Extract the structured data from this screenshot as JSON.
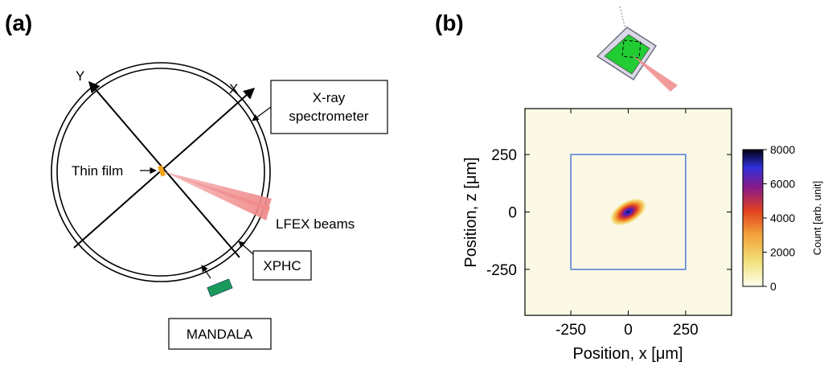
{
  "panel_a": {
    "label": "(a)",
    "axis_y": "Y",
    "axis_x": "X",
    "thin_film": "Thin film",
    "lfex": "LFEX beams",
    "spectrometer_line1": "X-ray",
    "spectrometer_line2": "spectrometer",
    "xphc": "XPHC",
    "mandala": "MANDALA",
    "colors": {
      "film": "#f2a31a",
      "beam": "#f08a8a",
      "mandala": "#1a9a5a"
    }
  },
  "panel_b": {
    "label": "(b)",
    "colorbar_label": "Count [arb. unit]",
    "colors": {
      "frame": "#5b7fd6",
      "plot_bg": "#fbf9e6",
      "inset_fill": "#22cc33",
      "inset_border": "#8a8a8a"
    }
  },
  "chart_data": {
    "type": "heatmap",
    "xlabel": "Position, x [μm]",
    "ylabel": "Position, z [μm]",
    "xlim": [
      -450,
      450
    ],
    "ylim": [
      -450,
      450
    ],
    "xticks": [
      -250,
      0,
      250
    ],
    "yticks": [
      -250,
      0,
      250
    ],
    "tick_labels_x": [
      "-250",
      "0",
      "250"
    ],
    "tick_labels_y": [
      "-250",
      "0",
      "250"
    ],
    "frame_box": {
      "x": [
        -250,
        250
      ],
      "z": [
        -250,
        250
      ]
    },
    "hotspot": {
      "x": 0,
      "z": 0,
      "peak_count": 8000
    },
    "colorbar": {
      "range": [
        0,
        8000
      ],
      "ticks": [
        0,
        2000,
        4000,
        6000,
        8000
      ],
      "tick_labels": [
        "0",
        "2000",
        "4000",
        "6000",
        "8000"
      ],
      "colormap": [
        "#fffff0",
        "#f0e27a",
        "#f2a13a",
        "#e2421e",
        "#8a1a86",
        "#3030d8",
        "#000010"
      ]
    }
  }
}
